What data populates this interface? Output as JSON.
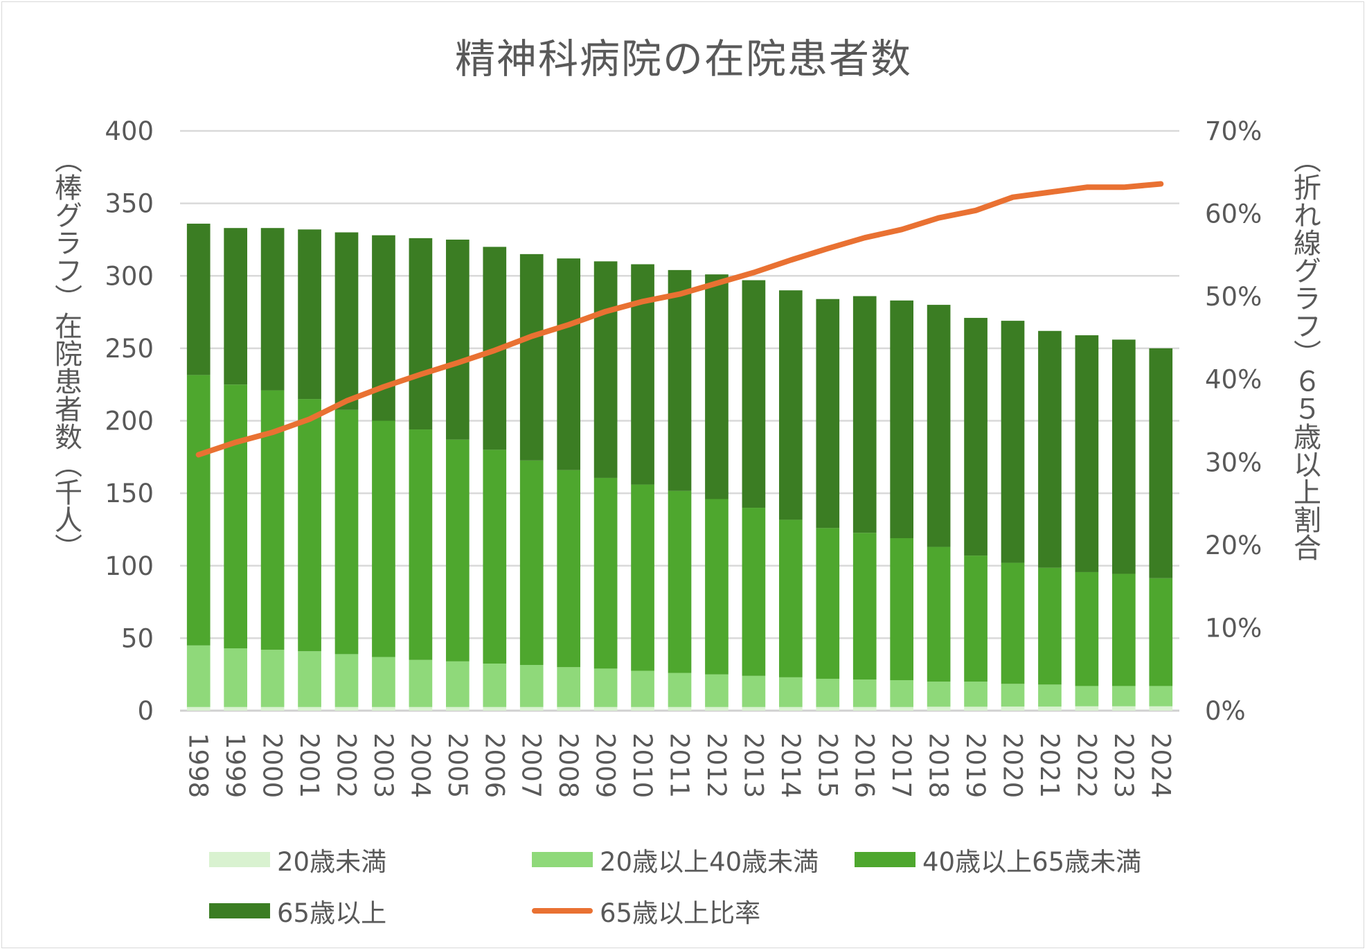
{
  "chart_data": {
    "type": "bar",
    "stacked": true,
    "title": "精神科病院の在院患者数",
    "xlabel": "",
    "ylabel": "（棒グラフ）在院患者数（千人）",
    "y2label": "（折れ線グラフ）６５歳以上割合",
    "ylim": [
      0,
      400
    ],
    "y2lim": [
      0,
      70
    ],
    "yticks": [
      "0",
      "50",
      "100",
      "150",
      "200",
      "250",
      "300",
      "350",
      "400"
    ],
    "y2ticks": [
      "0%",
      "10%",
      "20%",
      "30%",
      "40%",
      "50%",
      "60%",
      "70%"
    ],
    "grid": true,
    "legend_position": "bottom",
    "categories": [
      "1998",
      "1999",
      "2000",
      "2001",
      "2002",
      "2003",
      "2004",
      "2005",
      "2006",
      "2007",
      "2008",
      "2009",
      "2010",
      "2011",
      "2012",
      "2013",
      "2014",
      "2015",
      "2016",
      "2017",
      "2018",
      "2019",
      "2020",
      "2021",
      "2022",
      "2023",
      "2024"
    ],
    "series": [
      {
        "name": "20歳未満",
        "type": "bar",
        "axis": "left",
        "color": "#d9f2d0",
        "values": [
          2.5,
          2.5,
          2.5,
          2.5,
          2.5,
          2.5,
          2.5,
          2.5,
          2.5,
          2.5,
          2.5,
          2.5,
          2.5,
          2.5,
          2.5,
          2.5,
          2.5,
          2.5,
          2.5,
          2.5,
          2.7,
          2.7,
          2.8,
          2.8,
          3.0,
          3.0,
          3.0
        ]
      },
      {
        "name": "20歳以上40歳未満",
        "type": "bar",
        "axis": "left",
        "color": "#8fd97a",
        "values": [
          42.5,
          40.5,
          39.5,
          38.5,
          36.5,
          34.5,
          32.5,
          31.5,
          30.0,
          29.0,
          27.5,
          26.5,
          25.0,
          23.5,
          22.5,
          21.5,
          20.5,
          19.5,
          19.0,
          18.5,
          17.3,
          17.3,
          15.7,
          15.2,
          14.0,
          14.0,
          14.0
        ]
      },
      {
        "name": "40歳以上65歳未満",
        "type": "bar",
        "axis": "left",
        "color": "#4ea72e",
        "values": [
          186.6,
          182.0,
          179.0,
          174.0,
          168.5,
          163.0,
          159.0,
          153.0,
          147.5,
          141.1,
          136.0,
          131.6,
          128.5,
          125.6,
          121.0,
          116.0,
          108.7,
          104.0,
          101.2,
          98.0,
          93.0,
          87.0,
          83.5,
          80.6,
          78.6,
          77.4,
          74.4
        ]
      },
      {
        "name": "65歳以上",
        "type": "bar",
        "axis": "left",
        "color": "#3b7d23",
        "values": [
          104.4,
          108.0,
          112.0,
          117.0,
          122.5,
          128.0,
          132.0,
          138.0,
          140.0,
          142.4,
          146.0,
          149.4,
          152.0,
          152.4,
          155.0,
          157.0,
          158.3,
          158.0,
          163.3,
          164.0,
          167.0,
          164.0,
          167.0,
          163.4,
          163.4,
          161.6,
          158.6
        ]
      },
      {
        "name": "65歳以上比率",
        "type": "line",
        "axis": "right",
        "color": "#e97132",
        "unit": "%",
        "values": [
          30.9,
          32.4,
          33.6,
          35.2,
          37.4,
          39.1,
          40.6,
          42.0,
          43.5,
          45.2,
          46.6,
          48.2,
          49.4,
          50.3,
          51.6,
          52.9,
          54.4,
          55.8,
          57.1,
          58.1,
          59.5,
          60.4,
          62.0,
          62.6,
          63.2,
          63.2,
          63.6
        ]
      }
    ]
  }
}
